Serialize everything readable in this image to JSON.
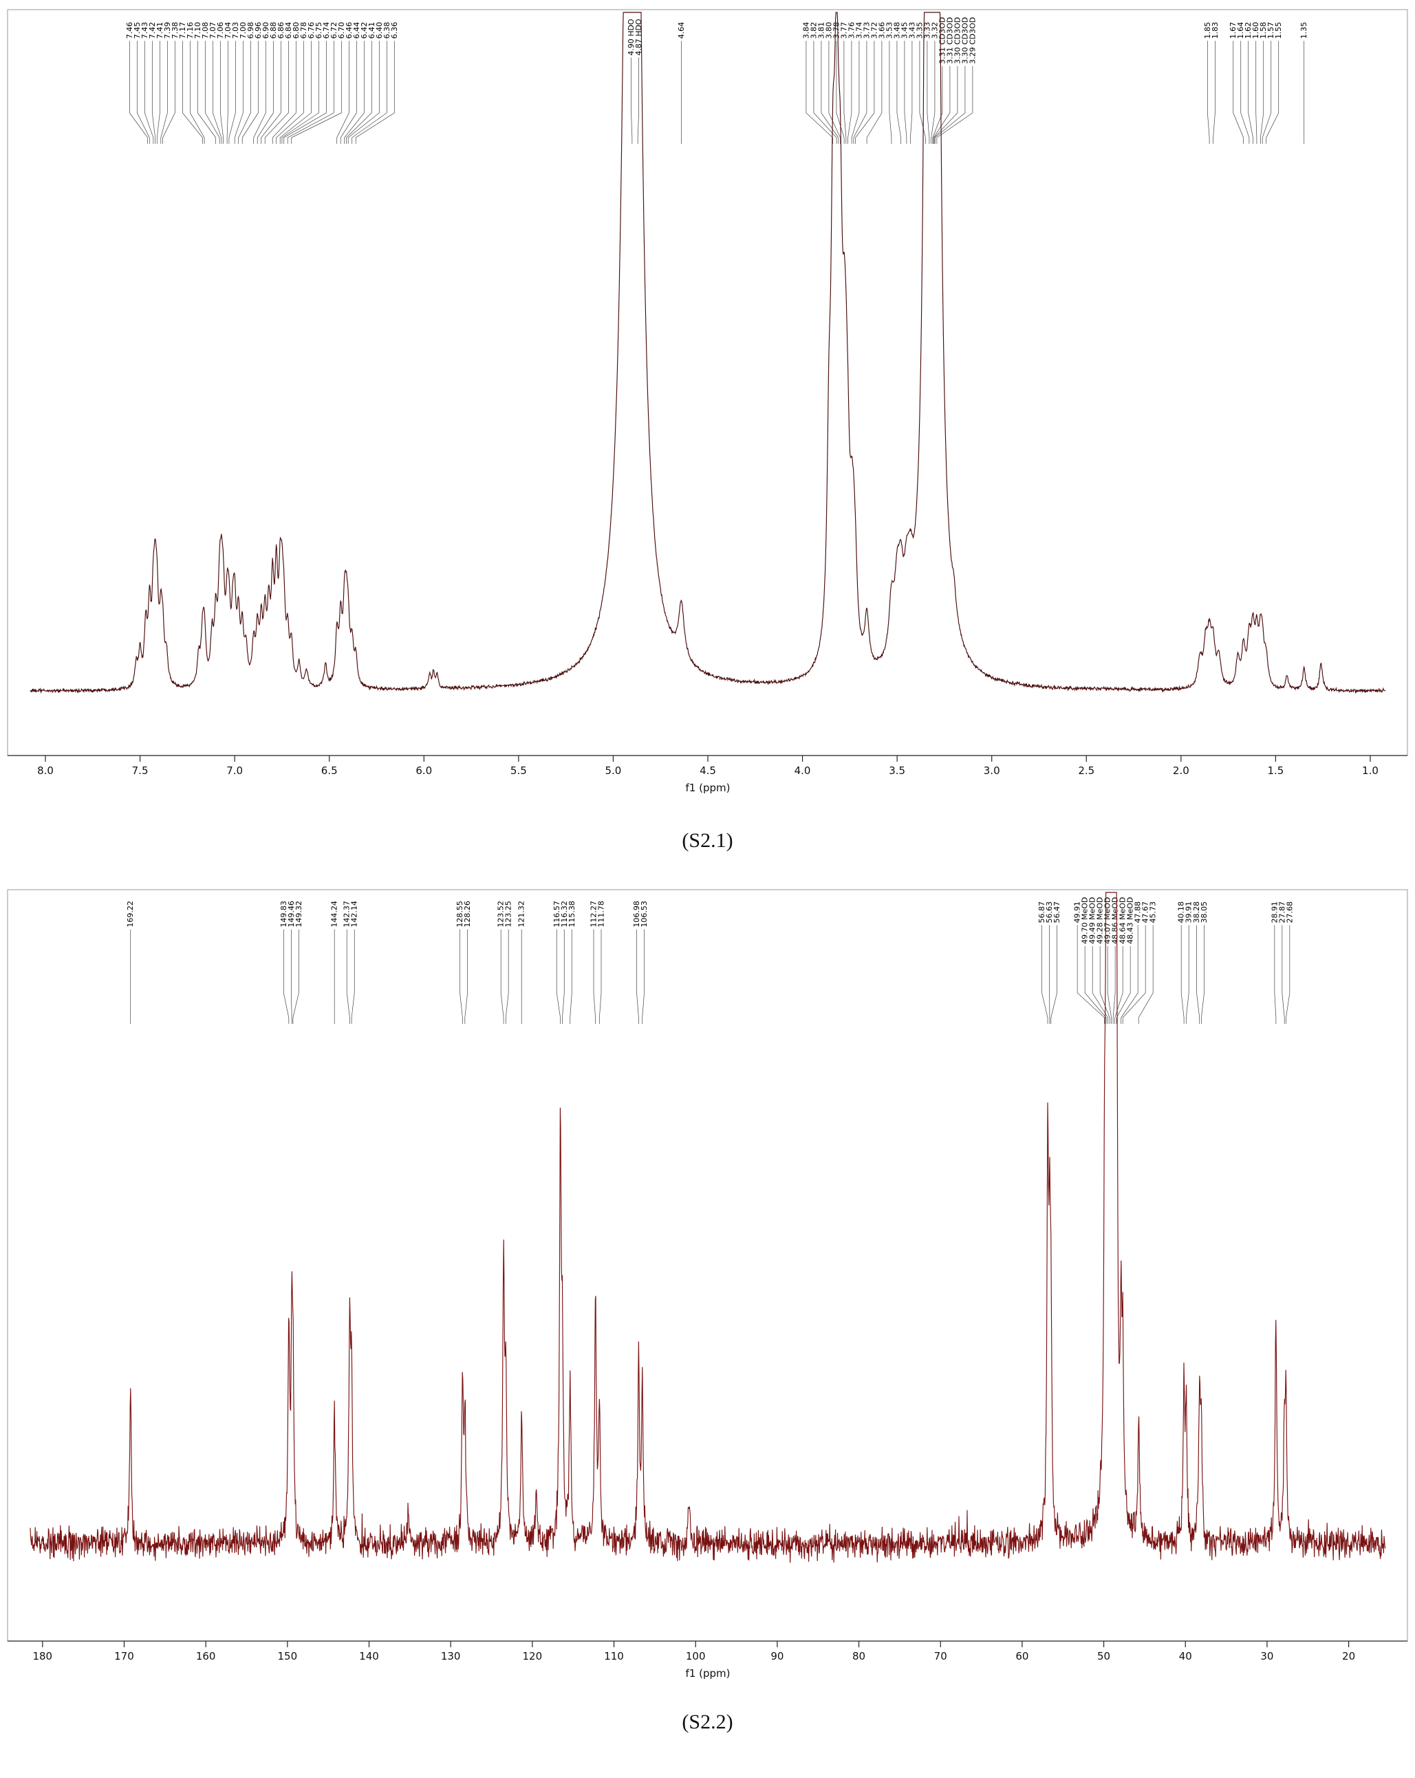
{
  "figures": [
    {
      "caption": "(S2.1)",
      "kind": "1H NMR spectrum"
    },
    {
      "caption": "(S2.2)",
      "kind": "13C NMR spectrum"
    }
  ],
  "chart_data": [
    {
      "id": "h1-nmr",
      "type": "line",
      "title": "",
      "ylabel": "",
      "xlabel": "f1 (ppm)",
      "x_range": [
        8.08,
        0.92
      ],
      "x_ticks": [
        8.0,
        7.5,
        7.0,
        6.5,
        6.0,
        5.5,
        5.0,
        4.5,
        4.0,
        3.5,
        3.0,
        2.5,
        2.0,
        1.5,
        1.0
      ],
      "x_tick_labels": [
        "8.0",
        "7.5",
        "7.0",
        "6.5",
        "6.0",
        "5.5",
        "5.0",
        "4.5",
        "4.0",
        "3.5",
        "3.0",
        "2.5",
        "2.0",
        "1.5",
        "1.0"
      ],
      "line_color": "#4a0c0c",
      "noise": 0.0016,
      "peak_width": 0.01,
      "peaks": [
        [
          7.52,
          0.04,
          0.009
        ],
        [
          7.5,
          0.06,
          0.009
        ],
        [
          7.47,
          0.1,
          0.009
        ],
        [
          7.45,
          0.13,
          0.009
        ],
        [
          7.43,
          0.12,
          0.009
        ],
        [
          7.42,
          0.14,
          0.009
        ],
        [
          7.41,
          0.12,
          0.009
        ],
        [
          7.39,
          0.1,
          0.009
        ],
        [
          7.38,
          0.08,
          0.009
        ],
        [
          7.36,
          0.05,
          0.009
        ],
        [
          7.19,
          0.05,
          0.009
        ],
        [
          7.17,
          0.08,
          0.009
        ],
        [
          7.16,
          0.09,
          0.009
        ],
        [
          7.12,
          0.08,
          0.009
        ],
        [
          7.1,
          0.11,
          0.009
        ],
        [
          7.08,
          0.14,
          0.009
        ],
        [
          7.07,
          0.13,
          0.009
        ],
        [
          7.06,
          0.12,
          0.009
        ],
        [
          7.04,
          0.11,
          0.009
        ],
        [
          7.03,
          0.1,
          0.009
        ],
        [
          7.01,
          0.09,
          0.009
        ],
        [
          7.0,
          0.12,
          0.009
        ],
        [
          6.98,
          0.11,
          0.009
        ],
        [
          6.96,
          0.09,
          0.009
        ],
        [
          6.94,
          0.06,
          0.009
        ],
        [
          6.9,
          0.07,
          0.009
        ],
        [
          6.88,
          0.09,
          0.009
        ],
        [
          6.86,
          0.1,
          0.009
        ],
        [
          6.84,
          0.11,
          0.009
        ],
        [
          6.82,
          0.12,
          0.009
        ],
        [
          6.8,
          0.16,
          0.009
        ],
        [
          6.78,
          0.18,
          0.009
        ],
        [
          6.76,
          0.15,
          0.009
        ],
        [
          6.75,
          0.12,
          0.009
        ],
        [
          6.74,
          0.1,
          0.009
        ],
        [
          6.72,
          0.08,
          0.009
        ],
        [
          6.7,
          0.07,
          0.009
        ],
        [
          6.66,
          0.04,
          0.009
        ],
        [
          6.62,
          0.03,
          0.009
        ],
        [
          6.52,
          0.04,
          0.009
        ],
        [
          6.46,
          0.09,
          0.009
        ],
        [
          6.44,
          0.11,
          0.009
        ],
        [
          6.42,
          0.12,
          0.009
        ],
        [
          6.41,
          0.1,
          0.009
        ],
        [
          6.4,
          0.09,
          0.009
        ],
        [
          6.38,
          0.07,
          0.009
        ],
        [
          6.36,
          0.05,
          0.009
        ],
        [
          5.97,
          0.025,
          0.007
        ],
        [
          5.95,
          0.03,
          0.007
        ],
        [
          5.93,
          0.025,
          0.007
        ],
        [
          4.9,
          3.5,
          0.035
        ],
        [
          4.64,
          0.1,
          0.018
        ],
        [
          3.86,
          0.3,
          0.012
        ],
        [
          3.84,
          0.55,
          0.012
        ],
        [
          3.82,
          0.9,
          0.016
        ],
        [
          3.8,
          0.5,
          0.013
        ],
        [
          3.78,
          0.28,
          0.012
        ],
        [
          3.77,
          0.22,
          0.012
        ],
        [
          3.76,
          0.18,
          0.012
        ],
        [
          3.74,
          0.14,
          0.012
        ],
        [
          3.73,
          0.12,
          0.012
        ],
        [
          3.72,
          0.1,
          0.012
        ],
        [
          3.66,
          0.09,
          0.013
        ],
        [
          3.53,
          0.1,
          0.016
        ],
        [
          3.5,
          0.11,
          0.016
        ],
        [
          3.48,
          0.11,
          0.016
        ],
        [
          3.45,
          0.09,
          0.016
        ],
        [
          3.43,
          0.08,
          0.016
        ],
        [
          3.35,
          0.5,
          0.012
        ],
        [
          3.33,
          1.2,
          0.014
        ],
        [
          3.31,
          3.5,
          0.022
        ],
        [
          3.29,
          0.8,
          0.013
        ],
        [
          3.2,
          0.04,
          0.012
        ],
        [
          1.9,
          0.05,
          0.013
        ],
        [
          1.87,
          0.07,
          0.013
        ],
        [
          1.85,
          0.08,
          0.013
        ],
        [
          1.83,
          0.07,
          0.013
        ],
        [
          1.8,
          0.05,
          0.013
        ],
        [
          1.7,
          0.05,
          0.011
        ],
        [
          1.67,
          0.07,
          0.011
        ],
        [
          1.64,
          0.08,
          0.011
        ],
        [
          1.62,
          0.09,
          0.011
        ],
        [
          1.6,
          0.08,
          0.011
        ],
        [
          1.58,
          0.07,
          0.011
        ],
        [
          1.57,
          0.06,
          0.011
        ],
        [
          1.55,
          0.05,
          0.011
        ],
        [
          1.44,
          0.025,
          0.009
        ],
        [
          1.35,
          0.04,
          0.009
        ],
        [
          1.26,
          0.05,
          0.009
        ]
      ],
      "peak_labels": [
        [
          "7.46",
          7.46
        ],
        [
          "7.45",
          7.45
        ],
        [
          "7.43",
          7.43
        ],
        [
          "7.42",
          7.42
        ],
        [
          "7.41",
          7.41
        ],
        [
          "7.39",
          7.39
        ],
        [
          "7.38",
          7.38
        ],
        [
          "7.17",
          7.17
        ],
        [
          "7.16",
          7.16
        ],
        [
          "7.10",
          7.1
        ],
        [
          "7.08",
          7.08
        ],
        [
          "7.07",
          7.07
        ],
        [
          "7.06",
          7.06
        ],
        [
          "7.04",
          7.04
        ],
        [
          "7.03",
          7.03
        ],
        [
          "7.00",
          7.0
        ],
        [
          "6.98",
          6.98
        ],
        [
          "6.96",
          6.96
        ],
        [
          "6.90",
          6.9
        ],
        [
          "6.88",
          6.88
        ],
        [
          "6.86",
          6.86
        ],
        [
          "6.84",
          6.84
        ],
        [
          "6.80",
          6.8
        ],
        [
          "6.78",
          6.78
        ],
        [
          "6.76",
          6.76
        ],
        [
          "6.75",
          6.75
        ],
        [
          "6.74",
          6.74
        ],
        [
          "6.72",
          6.72
        ],
        [
          "6.70",
          6.7
        ],
        [
          "6.46",
          6.46
        ],
        [
          "6.44",
          6.44
        ],
        [
          "6.42",
          6.42
        ],
        [
          "6.41",
          6.41
        ],
        [
          "6.40",
          6.4
        ],
        [
          "6.38",
          6.38
        ],
        [
          "6.36",
          6.36
        ],
        [
          "4.90 HDO",
          4.9
        ],
        [
          "4.87 HDO",
          4.87
        ],
        [
          "4.64",
          4.64
        ],
        [
          "3.84",
          3.84
        ],
        [
          "3.82",
          3.82
        ],
        [
          "3.81",
          3.81
        ],
        [
          "3.80",
          3.8
        ],
        [
          "3.78",
          3.78
        ],
        [
          "3.77",
          3.77
        ],
        [
          "3.76",
          3.76
        ],
        [
          "3.74",
          3.74
        ],
        [
          "3.73",
          3.73
        ],
        [
          "3.72",
          3.72
        ],
        [
          "3.66",
          3.66
        ],
        [
          "3.53",
          3.53
        ],
        [
          "3.48",
          3.48
        ],
        [
          "3.45",
          3.45
        ],
        [
          "3.43",
          3.43
        ],
        [
          "3.35",
          3.35
        ],
        [
          "3.33",
          3.33
        ],
        [
          "3.32",
          3.32
        ],
        [
          "3.31 CD3OD",
          3.312
        ],
        [
          "3.31 CD3OD",
          3.308
        ],
        [
          "3.30 CD3OD",
          3.304
        ],
        [
          "3.30 CD3OD",
          3.3
        ],
        [
          "3.29 CD3OD",
          3.29
        ],
        [
          "1.85",
          1.85
        ],
        [
          "1.83",
          1.83
        ],
        [
          "1.67",
          1.67
        ],
        [
          "1.64",
          1.64
        ],
        [
          "1.62",
          1.62
        ],
        [
          "1.60",
          1.6
        ],
        [
          "1.58",
          1.58
        ],
        [
          "1.57",
          1.57
        ],
        [
          "1.55",
          1.55
        ],
        [
          "1.35",
          1.35
        ]
      ]
    },
    {
      "id": "c13-nmr",
      "type": "line",
      "title": "",
      "ylabel": "",
      "xlabel": "f1 (ppm)",
      "x_range": [
        181.5,
        15.5
      ],
      "x_ticks": [
        180,
        170,
        160,
        150,
        140,
        130,
        120,
        110,
        100,
        90,
        80,
        70,
        60,
        50,
        40,
        30,
        20
      ],
      "x_tick_labels": [
        "180",
        "170",
        "160",
        "150",
        "140",
        "130",
        "120",
        "110",
        "100",
        "90",
        "80",
        "70",
        "60",
        "50",
        "40",
        "30",
        "20"
      ],
      "line_color": "#7a1212",
      "noise": 0.015,
      "peak_width": 0.12,
      "peaks": [
        [
          169.22,
          0.3
        ],
        [
          149.83,
          0.42
        ],
        [
          149.46,
          0.36
        ],
        [
          149.32,
          0.3
        ],
        [
          144.24,
          0.27
        ],
        [
          142.37,
          0.44
        ],
        [
          142.14,
          0.3
        ],
        [
          135.2,
          0.07
        ],
        [
          128.55,
          0.32
        ],
        [
          128.26,
          0.24
        ],
        [
          123.52,
          0.57
        ],
        [
          123.25,
          0.32
        ],
        [
          121.32,
          0.27
        ],
        [
          119.5,
          0.1
        ],
        [
          116.57,
          0.82
        ],
        [
          116.32,
          0.36
        ],
        [
          115.38,
          0.34
        ],
        [
          112.27,
          0.5
        ],
        [
          111.78,
          0.28
        ],
        [
          106.98,
          0.37
        ],
        [
          106.53,
          0.32
        ],
        [
          100.8,
          0.08
        ],
        [
          56.87,
          0.75
        ],
        [
          56.63,
          0.48
        ],
        [
          56.47,
          0.38
        ],
        [
          49.91,
          0.5
        ],
        [
          49.7,
          0.85
        ],
        [
          49.49,
          1.25
        ],
        [
          49.28,
          1.7
        ],
        [
          49.07,
          2.2
        ],
        [
          48.86,
          1.7
        ],
        [
          48.64,
          1.25
        ],
        [
          48.43,
          0.85
        ],
        [
          47.88,
          0.34
        ],
        [
          47.67,
          0.3
        ],
        [
          45.73,
          0.24
        ],
        [
          40.18,
          0.3
        ],
        [
          39.91,
          0.27
        ],
        [
          38.28,
          0.28
        ],
        [
          38.05,
          0.24
        ],
        [
          28.91,
          0.45
        ],
        [
          27.87,
          0.22
        ],
        [
          27.68,
          0.26
        ]
      ],
      "peak_labels": [
        [
          "169.22",
          169.22
        ],
        [
          "149.83",
          149.83
        ],
        [
          "149.46",
          149.46
        ],
        [
          "149.32",
          149.32
        ],
        [
          "144.24",
          144.24
        ],
        [
          "142.37",
          142.37
        ],
        [
          "142.14",
          142.14
        ],
        [
          "128.55",
          128.55
        ],
        [
          "128.26",
          128.26
        ],
        [
          "123.52",
          123.52
        ],
        [
          "123.25",
          123.25
        ],
        [
          "121.32",
          121.32
        ],
        [
          "116.57",
          116.57
        ],
        [
          "116.32",
          116.32
        ],
        [
          "115.38",
          115.38
        ],
        [
          "112.27",
          112.27
        ],
        [
          "111.78",
          111.78
        ],
        [
          "106.98",
          106.98
        ],
        [
          "106.53",
          106.53
        ],
        [
          "56.87",
          56.87
        ],
        [
          "56.63",
          56.63
        ],
        [
          "56.47",
          56.47
        ],
        [
          "49.91",
          49.91
        ],
        [
          "49.70 MeOD",
          49.7
        ],
        [
          "49.49 MeOD",
          49.49
        ],
        [
          "49.28 MeOD",
          49.28
        ],
        [
          "49.07 MeOD",
          49.07
        ],
        [
          "48.86 MeOD",
          48.86
        ],
        [
          "48.64 MeOD",
          48.64
        ],
        [
          "48.43 MeOD",
          48.43
        ],
        [
          "47.88",
          47.88
        ],
        [
          "47.67",
          47.67
        ],
        [
          "45.73",
          45.73
        ],
        [
          "40.18",
          40.18
        ],
        [
          "39.91",
          39.91
        ],
        [
          "38.28",
          38.28
        ],
        [
          "38.05",
          38.05
        ],
        [
          "28.91",
          28.91
        ],
        [
          "27.87",
          27.87
        ],
        [
          "27.68",
          27.68
        ]
      ]
    }
  ]
}
